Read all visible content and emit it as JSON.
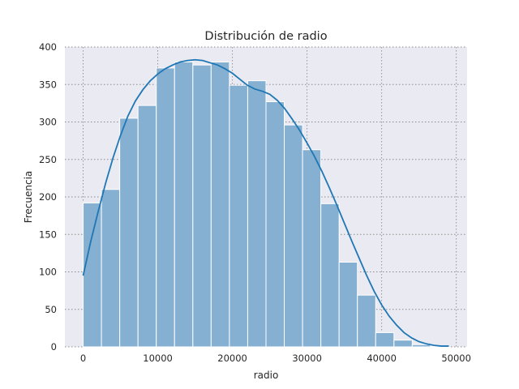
{
  "chart_data": {
    "type": "bar",
    "title": "Distribución de radio",
    "xlabel": "radio",
    "ylabel": "Frecuencia",
    "xlim": [
      -2450,
      51450
    ],
    "ylim": [
      0,
      400
    ],
    "xticks": [
      0,
      10000,
      20000,
      30000,
      40000,
      50000
    ],
    "yticks": [
      0,
      50,
      100,
      150,
      200,
      250,
      300,
      350,
      400
    ],
    "grid": true,
    "bin_edges": [
      0,
      2450,
      4900,
      7350,
      9800,
      12250,
      14700,
      17150,
      19600,
      22050,
      24500,
      26950,
      29400,
      31850,
      34300,
      36750,
      39200,
      41650,
      44100,
      46550,
      49000
    ],
    "values": [
      192,
      210,
      305,
      322,
      372,
      380,
      376,
      380,
      349,
      355,
      327,
      296,
      263,
      191,
      113,
      69,
      19,
      9,
      3,
      1
    ],
    "kde": {
      "x": [
        0,
        1000,
        2000,
        3000,
        4000,
        5000,
        6000,
        7000,
        8000,
        9000,
        10000,
        11000,
        12000,
        13000,
        14000,
        15000,
        16000,
        17000,
        18000,
        19000,
        20000,
        21000,
        22000,
        23000,
        24000,
        25000,
        26000,
        27000,
        28000,
        29000,
        30000,
        31000,
        32000,
        33000,
        34000,
        35000,
        36000,
        37000,
        38000,
        39000,
        40000,
        41000,
        42000,
        43000,
        44000,
        45000,
        46000,
        47000,
        48000,
        49000
      ],
      "y": [
        95,
        140,
        180,
        218,
        252,
        282,
        308,
        328,
        343,
        355,
        364,
        371,
        376,
        380,
        382,
        383,
        382,
        379,
        376,
        371,
        365,
        357,
        349,
        344,
        341,
        337,
        329,
        318,
        304,
        289,
        272,
        254,
        234,
        212,
        189,
        165,
        141,
        118,
        95,
        74,
        56,
        41,
        29,
        19,
        12,
        7,
        4,
        2,
        1,
        1
      ]
    },
    "colors": {
      "bar_fill": "#86b0d2",
      "bar_edge": "#ffffff",
      "kde_line": "#1f77b4",
      "plot_bg": "#eaeaf2",
      "grid": "#8c8c8c"
    }
  }
}
